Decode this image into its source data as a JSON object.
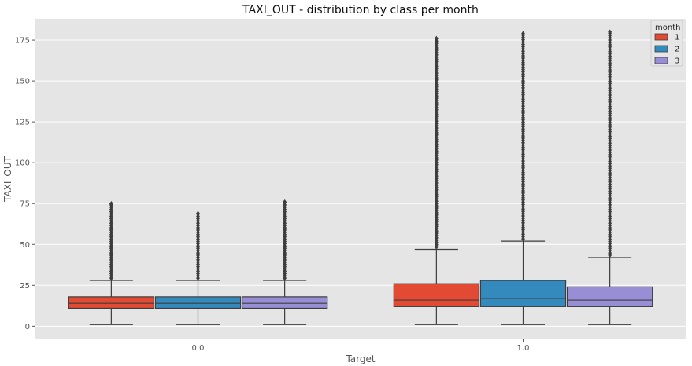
{
  "chart_data": {
    "type": "box",
    "title": "TAXI_OUT - distribution by class per month",
    "xlabel": "Target",
    "ylabel": "TAXI_OUT",
    "categories": [
      "0.0",
      "1.0"
    ],
    "ylim": [
      -8,
      188
    ],
    "yticks": [
      0,
      25,
      50,
      75,
      100,
      125,
      150,
      175
    ],
    "grid": true,
    "legend": {
      "title": "month",
      "position": "top-right"
    },
    "series": [
      {
        "name": "1",
        "color": "#e24a33",
        "boxes": [
          {
            "category": "0.0",
            "min": 1,
            "q1": 11,
            "median": 14,
            "q3": 18,
            "whisker_high": 28,
            "outlier_max": 75
          },
          {
            "category": "1.0",
            "min": 1,
            "q1": 12,
            "median": 16,
            "q3": 26,
            "whisker_high": 47,
            "outlier_max": 176
          }
        ]
      },
      {
        "name": "2",
        "color": "#348abd",
        "boxes": [
          {
            "category": "0.0",
            "min": 1,
            "q1": 11,
            "median": 14,
            "q3": 18,
            "whisker_high": 28,
            "outlier_max": 69
          },
          {
            "category": "1.0",
            "min": 1,
            "q1": 12,
            "median": 17,
            "q3": 28,
            "whisker_high": 52,
            "outlier_max": 179
          }
        ]
      },
      {
        "name": "3",
        "color": "#988ed5",
        "boxes": [
          {
            "category": "0.0",
            "min": 1,
            "q1": 11,
            "median": 14,
            "q3": 18,
            "whisker_high": 28,
            "outlier_max": 76
          },
          {
            "category": "1.0",
            "min": 1,
            "q1": 12,
            "median": 16,
            "q3": 24,
            "whisker_high": 42,
            "outlier_max": 180
          }
        ]
      }
    ]
  }
}
